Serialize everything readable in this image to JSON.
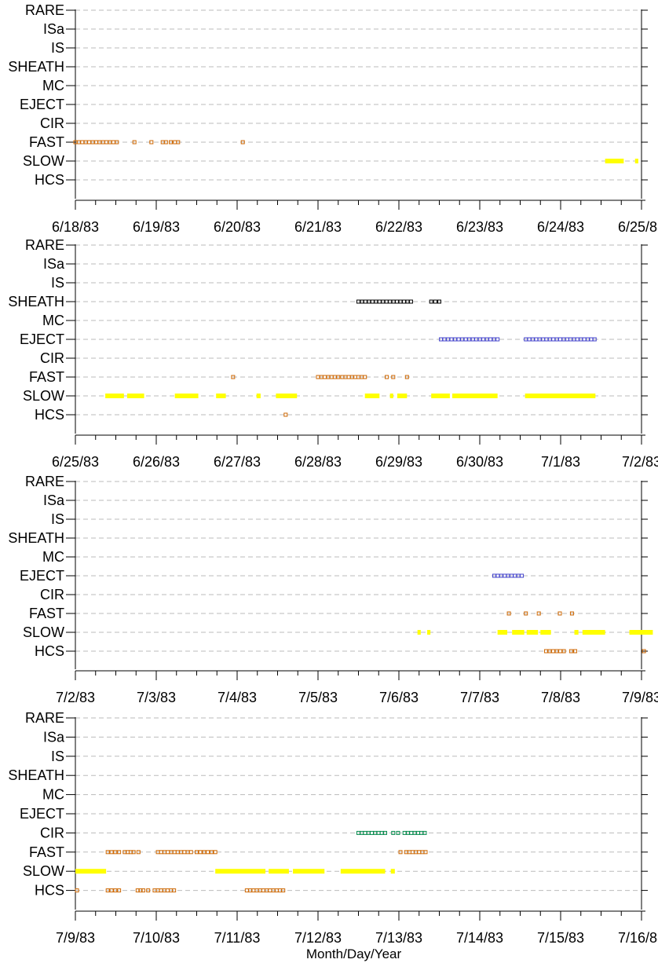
{
  "xlabel": "Month/Day/Year",
  "categories": [
    "RARE",
    "ISa",
    "IS",
    "SHEATH",
    "MC",
    "EJECT",
    "CIR",
    "FAST",
    "SLOW",
    "HCS"
  ],
  "colors": {
    "SLOW": "#ffff00",
    "FAST": "#cc6600",
    "HCS": "#cc6600",
    "SHEATH": "#000000",
    "EJECT": "#4444cc",
    "CIR": "#00884a",
    "gridline": "#bbbbbb",
    "axis": "#000000"
  },
  "chart_data": [
    {
      "type": "scatter",
      "ticks": [
        "6/18/83",
        "6/19/83",
        "6/20/83",
        "6/21/83",
        "6/22/83",
        "6/23/83",
        "6/24/83",
        "6/25/83"
      ],
      "xlim": [
        "1983-06-18",
        "1983-06-25"
      ],
      "series": [
        {
          "category": "FAST",
          "style": "points",
          "x": [
            "1983-06-18 00:00",
            "1983-06-18 12:30"
          ],
          "values": [
            0.0,
            0.5
          ],
          "extra": [
            0.73,
            0.94,
            1.08,
            1.12,
            1.18,
            1.23,
            1.27,
            2.07
          ]
        },
        {
          "category": "SLOW",
          "style": "segments",
          "segments": [
            [
              6.55,
              6.78
            ],
            [
              6.92,
              6.96
            ]
          ]
        }
      ]
    },
    {
      "type": "scatter",
      "ticks": [
        "6/25/83",
        "6/26/83",
        "6/27/83",
        "6/28/83",
        "6/29/83",
        "6/30/83",
        "7/1/83",
        "7/2/83"
      ],
      "xlim": [
        "1983-06-25",
        "1983-07-02"
      ],
      "series": [
        {
          "category": "SHEATH",
          "style": "points",
          "segments": [
            [
              3.5,
              4.15
            ],
            [
              4.4,
              4.5
            ]
          ]
        },
        {
          "category": "EJECT",
          "style": "points",
          "segments": [
            [
              4.52,
              5.22
            ],
            [
              5.57,
              6.42
            ]
          ]
        },
        {
          "category": "FAST",
          "style": "points",
          "segments": [
            [
              1.95,
              1.97
            ],
            [
              3.0,
              3.25
            ],
            [
              3.3,
              3.58
            ],
            [
              3.85,
              3.87
            ],
            [
              3.93,
              3.95
            ],
            [
              4.1,
              4.12
            ]
          ]
        },
        {
          "category": "SLOW",
          "style": "segments",
          "segments": [
            [
              0.37,
              0.6
            ],
            [
              0.64,
              0.85
            ],
            [
              1.23,
              1.52
            ],
            [
              1.74,
              1.86
            ],
            [
              2.24,
              2.29
            ],
            [
              2.48,
              2.74
            ],
            [
              3.58,
              3.76
            ],
            [
              3.89,
              3.93
            ],
            [
              3.98,
              4.1
            ],
            [
              4.4,
              4.63
            ],
            [
              4.66,
              5.22
            ],
            [
              5.56,
              6.43
            ]
          ]
        },
        {
          "category": "HCS",
          "style": "points",
          "segments": [
            [
              2.6,
              2.62
            ]
          ]
        }
      ]
    },
    {
      "type": "scatter",
      "ticks": [
        "7/2/83",
        "7/3/83",
        "7/4/83",
        "7/5/83",
        "7/6/83",
        "7/7/83",
        "7/8/83",
        "7/9/83"
      ],
      "xlim": [
        "1983-07-02",
        "1983-07-09"
      ],
      "series": [
        {
          "category": "EJECT",
          "style": "points",
          "segments": [
            [
              5.18,
              5.52
            ]
          ]
        },
        {
          "category": "FAST",
          "style": "points",
          "segments": [
            [
              5.36,
              5.38
            ],
            [
              5.57,
              5.59
            ],
            [
              5.73,
              5.75
            ],
            [
              5.99,
              6.01
            ],
            [
              6.14,
              6.16
            ]
          ]
        },
        {
          "category": "SLOW",
          "style": "segments",
          "segments": [
            [
              4.23,
              4.27
            ],
            [
              4.35,
              4.39
            ],
            [
              5.22,
              5.34
            ],
            [
              5.4,
              5.55
            ],
            [
              5.58,
              5.72
            ],
            [
              5.75,
              5.88
            ],
            [
              6.17,
              6.22
            ],
            [
              6.27,
              6.55
            ],
            [
              6.85,
              7.14
            ]
          ]
        },
        {
          "category": "HCS",
          "style": "points",
          "segments": [
            [
              5.82,
              6.04
            ],
            [
              6.13,
              6.18
            ],
            [
              7.03,
              7.05
            ]
          ]
        }
      ]
    },
    {
      "type": "scatter",
      "ticks": [
        "7/9/83",
        "7/10/83",
        "7/11/83",
        "7/12/83",
        "7/13/83",
        "7/14/83",
        "7/15/83",
        "7/16/83"
      ],
      "xlim": [
        "1983-07-09",
        "1983-07-16"
      ],
      "series": [
        {
          "category": "CIR",
          "style": "points",
          "segments": [
            [
              3.5,
              3.83
            ],
            [
              3.93,
              3.99
            ],
            [
              4.07,
              4.32
            ]
          ]
        },
        {
          "category": "FAST",
          "style": "points",
          "segments": [
            [
              0.4,
              0.54
            ],
            [
              0.61,
              0.72
            ],
            [
              0.78,
              0.8
            ],
            [
              1.02,
              1.43
            ],
            [
              1.5,
              1.73
            ],
            [
              4.02,
              4.04
            ],
            [
              4.09,
              4.33
            ]
          ]
        },
        {
          "category": "SLOW",
          "style": "segments",
          "segments": [
            [
              0.0,
              0.38
            ],
            [
              1.73,
              2.35
            ],
            [
              2.39,
              2.64
            ],
            [
              2.69,
              3.08
            ],
            [
              3.28,
              3.83
            ],
            [
              3.9,
              3.95
            ]
          ]
        },
        {
          "category": "HCS",
          "style": "points",
          "segments": [
            [
              0.02,
              0.04
            ],
            [
              0.4,
              0.54
            ],
            [
              0.77,
              0.84
            ],
            [
              0.9,
              0.92
            ],
            [
              0.98,
              1.22
            ],
            [
              2.12,
              2.57
            ]
          ]
        }
      ]
    }
  ]
}
